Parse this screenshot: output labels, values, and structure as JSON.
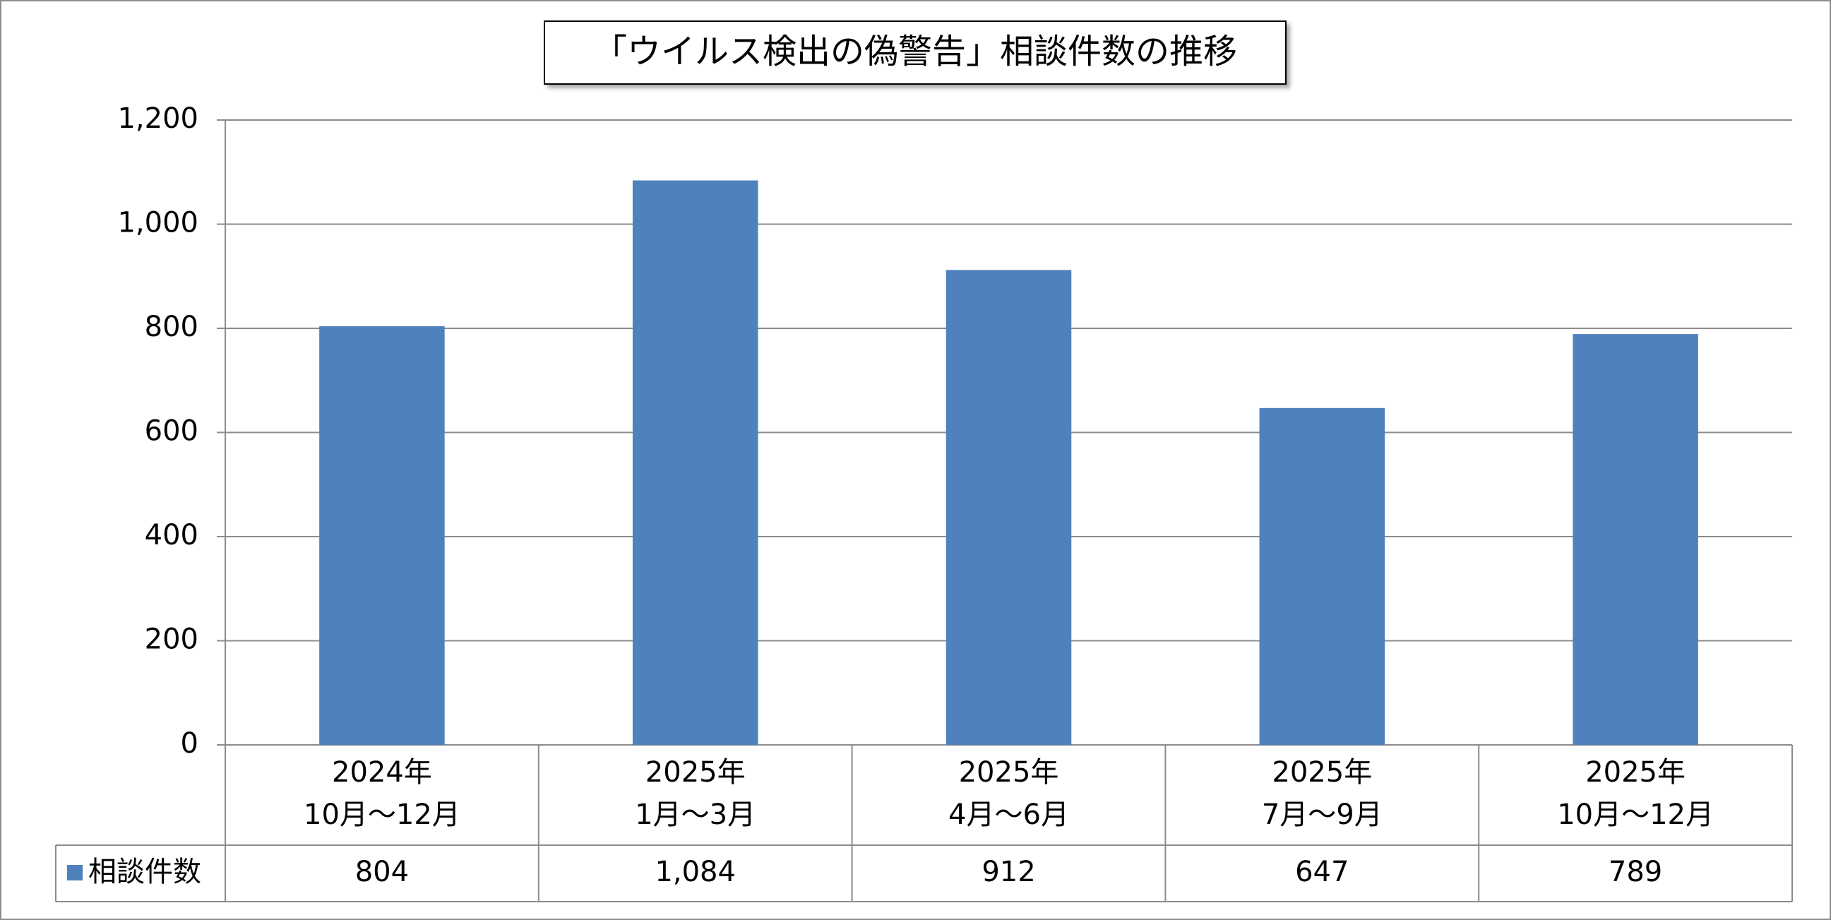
{
  "chart_data": {
    "type": "bar",
    "title": "「ウイルス検出の偽警告」相談件数の推移",
    "categories": [
      "2024年\n10月～12月",
      "2025年\n1月～3月",
      "2025年\n4月～6月",
      "2025年\n7月～9月",
      "2025年\n10月～12月"
    ],
    "series": [
      {
        "name": "相談件数",
        "color": "#4f81bd",
        "values": [
          804,
          1084,
          912,
          647,
          789
        ],
        "value_labels": [
          "804",
          "1,084",
          "912",
          "647",
          "789"
        ]
      }
    ],
    "ylim": [
      0,
      1200
    ],
    "yticks": [
      0,
      200,
      400,
      600,
      800,
      {
        "value": 1000,
        "label": "1,000"
      },
      {
        "value": 1200,
        "label": "1,200"
      }
    ],
    "grid": true,
    "data_table": true
  }
}
